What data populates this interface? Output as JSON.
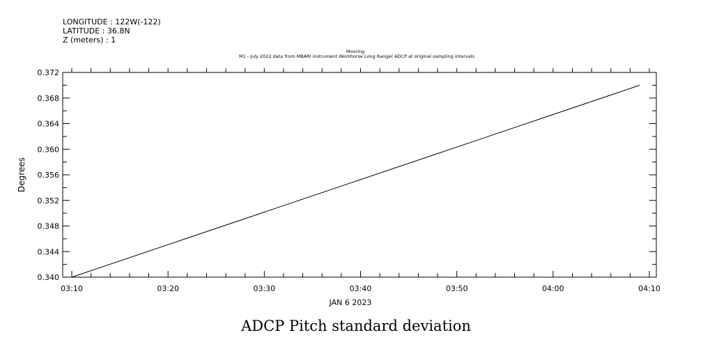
{
  "header": {
    "longitude": "LONGITUDE : 122W(-122)",
    "latitude": "LATITUDE : 36.8N",
    "z": "Z (meters) : 1"
  },
  "chart_data": {
    "type": "line",
    "title": "Mooring",
    "subtitle": "M1 - July 2022 data from MBARI instrument Workhorse Long Ranger ADCP at original sampling intervals",
    "ylabel": "Degrees",
    "xlabel": "JAN  6 2023",
    "caption": "ADCP Pitch standard deviation",
    "x_tick_labels": [
      "03:10",
      "03:20",
      "03:30",
      "03:40",
      "03:50",
      "04:00",
      "04:10"
    ],
    "y_tick_labels": [
      "0.340",
      "0.344",
      "0.348",
      "0.352",
      "0.356",
      "0.360",
      "0.364",
      "0.368",
      "0.372"
    ],
    "xlim": [
      "2023-01-06T03:10",
      "2023-01-06T04:10"
    ],
    "ylim": [
      0.34,
      0.372
    ],
    "grid": false,
    "series": [
      {
        "x": [
          "2023-01-06T03:10",
          "2023-01-06T04:09"
        ],
        "y": [
          0.34,
          0.37
        ]
      }
    ]
  }
}
